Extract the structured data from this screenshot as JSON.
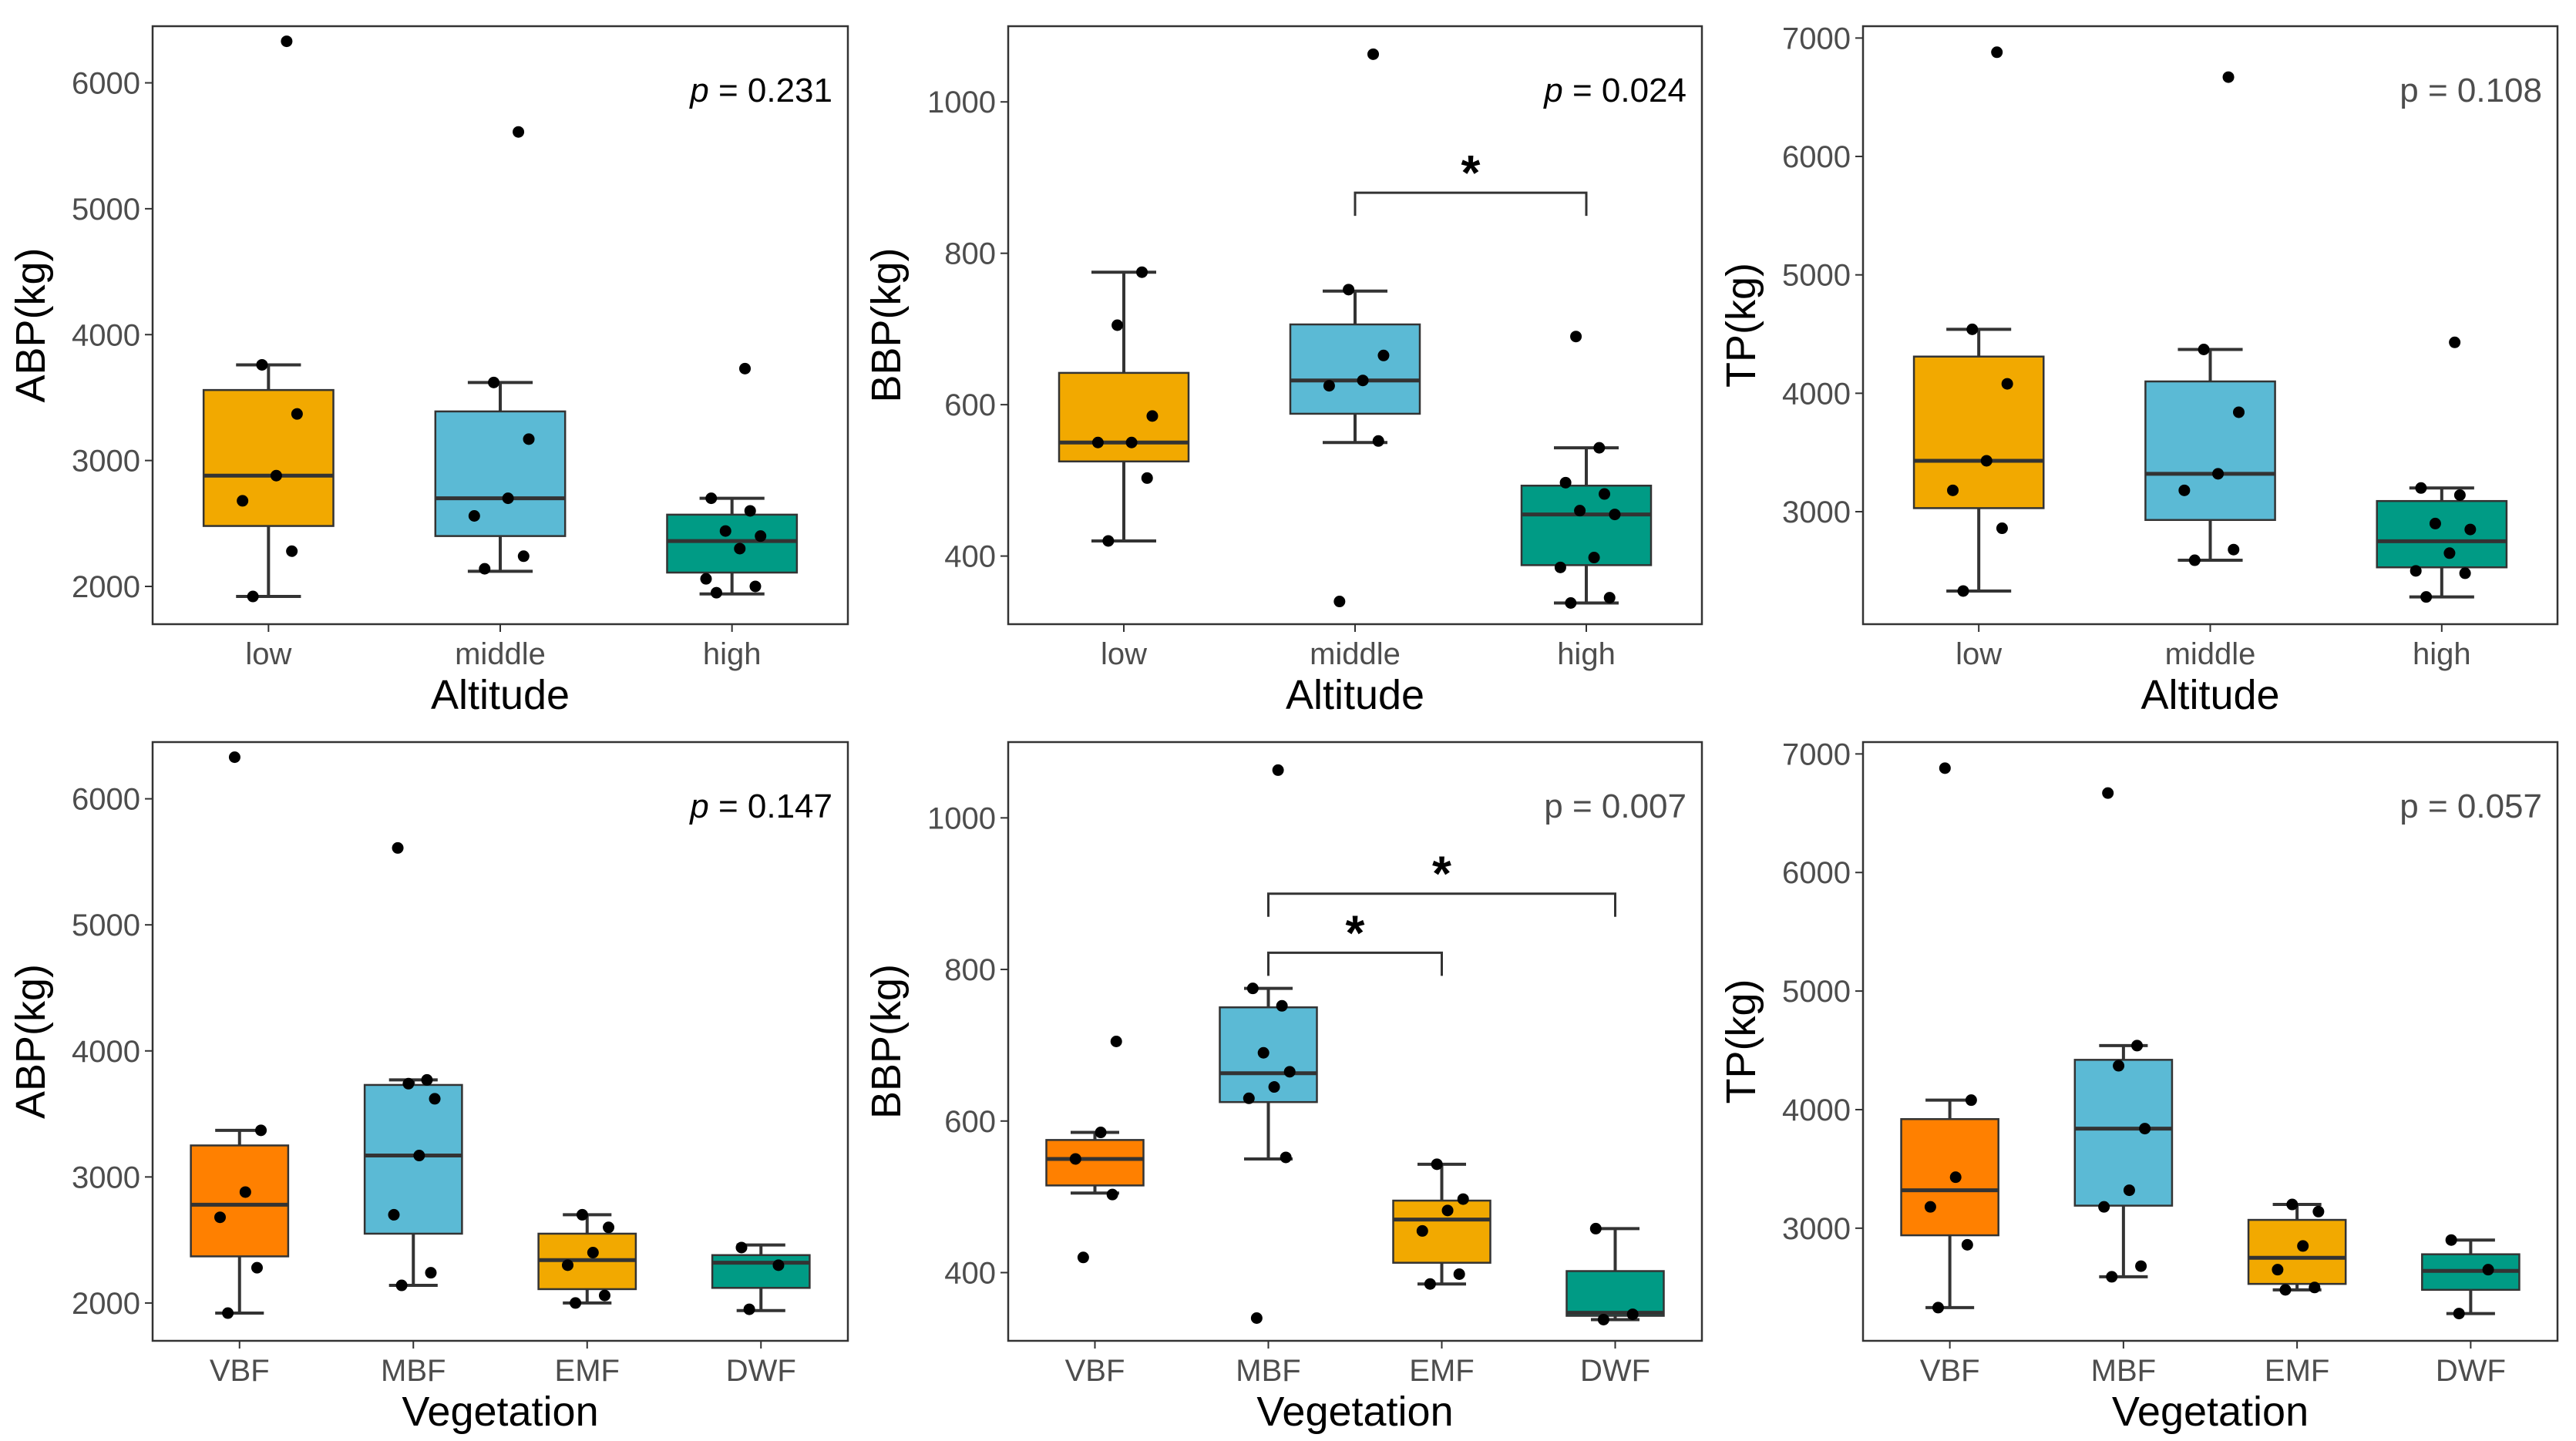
{
  "chart_data": [
    {
      "type": "box",
      "panel": "top-left",
      "xlabel": "Altitude",
      "ylabel": "ABP(kg)",
      "categories": [
        "low",
        "middle",
        "high"
      ],
      "colors": [
        "#F2A900",
        "#5BBAD5",
        "#009B85"
      ],
      "ylim": [
        1700,
        6450
      ],
      "yticks": [
        "2000",
        "3000",
        "4000",
        "5000",
        "6000"
      ],
      "p_text": "p = 0.231",
      "p_italic": true,
      "boxes": [
        {
          "q1": 2480,
          "median": 2880,
          "q3": 3560,
          "lo": 1920,
          "hi": 3760
        },
        {
          "q1": 2400,
          "median": 2700,
          "q3": 3390,
          "lo": 2120,
          "hi": 3620
        },
        {
          "q1": 2110,
          "median": 2360,
          "q3": 2570,
          "lo": 1940,
          "hi": 2700
        }
      ],
      "points": [
        [
          1920,
          2280,
          2680,
          2880,
          3370,
          3760,
          6330
        ],
        [
          2140,
          2240,
          2560,
          2700,
          3170,
          3620,
          5610
        ],
        [
          1950,
          2000,
          2060,
          2300,
          2400,
          2440,
          2600,
          2700,
          3730
        ]
      ],
      "sig": []
    },
    {
      "type": "box",
      "panel": "top-middle",
      "xlabel": "Altitude",
      "ylabel": "BBP(kg)",
      "categories": [
        "low",
        "middle",
        "high"
      ],
      "colors": [
        "#F2A900",
        "#5BBAD5",
        "#009B85"
      ],
      "ylim": [
        310,
        1100
      ],
      "yticks": [
        "400",
        "600",
        "800",
        "1000"
      ],
      "p_text": "p = 0.024",
      "p_italic": true,
      "boxes": [
        {
          "q1": 525,
          "median": 550,
          "q3": 642,
          "lo": 420,
          "hi": 775
        },
        {
          "q1": 588,
          "median": 632,
          "q3": 706,
          "lo": 550,
          "hi": 750
        },
        {
          "q1": 388,
          "median": 455,
          "q3": 493,
          "lo": 338,
          "hi": 543
        }
      ],
      "points": [
        [
          420,
          503,
          550,
          550,
          585,
          705,
          775
        ],
        [
          340,
          552,
          625,
          632,
          665,
          752,
          1063
        ],
        [
          338,
          345,
          385,
          398,
          455,
          460,
          482,
          497,
          543,
          690
        ]
      ],
      "sig": [
        {
          "from": 1,
          "to": 2,
          "y": 880,
          "label": "*"
        }
      ]
    },
    {
      "type": "box",
      "panel": "top-right",
      "xlabel": "Altitude",
      "ylabel": "TP(kg)",
      "categories": [
        "low",
        "middle",
        "high"
      ],
      "colors": [
        "#F2A900",
        "#5BBAD5",
        "#009B85"
      ],
      "ylim": [
        2050,
        7100
      ],
      "yticks": [
        "3000",
        "4000",
        "5000",
        "6000",
        "7000"
      ],
      "p_text": "p = 0.108",
      "p_italic": false,
      "boxes": [
        {
          "q1": 3030,
          "median": 3430,
          "q3": 4310,
          "lo": 2330,
          "hi": 4540
        },
        {
          "q1": 2930,
          "median": 3320,
          "q3": 4100,
          "lo": 2590,
          "hi": 4370
        },
        {
          "q1": 2530,
          "median": 2750,
          "q3": 3090,
          "lo": 2280,
          "hi": 3200
        }
      ],
      "points": [
        [
          2330,
          2860,
          3180,
          3430,
          4080,
          4540,
          6880
        ],
        [
          2590,
          2680,
          3180,
          3320,
          3840,
          4370,
          6670
        ],
        [
          2280,
          2480,
          2500,
          2650,
          2850,
          2900,
          3140,
          3200,
          4430
        ]
      ],
      "sig": []
    },
    {
      "type": "box",
      "panel": "bottom-left",
      "xlabel": "Vegetation",
      "ylabel": "ABP(kg)",
      "categories": [
        "VBF",
        "MBF",
        "EMF",
        "DWF"
      ],
      "colors": [
        "#FF8000",
        "#5BBAD5",
        "#F2A900",
        "#009B85"
      ],
      "ylim": [
        1700,
        6450
      ],
      "yticks": [
        "2000",
        "3000",
        "4000",
        "5000",
        "6000"
      ],
      "p_text": "p = 0.147",
      "p_italic": true,
      "boxes": [
        {
          "q1": 2370,
          "median": 2780,
          "q3": 3250,
          "lo": 1920,
          "hi": 3370
        },
        {
          "q1": 2550,
          "median": 3170,
          "q3": 3730,
          "lo": 2140,
          "hi": 3770
        },
        {
          "q1": 2110,
          "median": 2340,
          "q3": 2550,
          "lo": 2000,
          "hi": 2700
        },
        {
          "q1": 2120,
          "median": 2320,
          "q3": 2380,
          "lo": 1940,
          "hi": 2460
        }
      ],
      "points": [
        [
          1920,
          2280,
          2680,
          2880,
          3370,
          6330
        ],
        [
          2140,
          2240,
          2700,
          3170,
          3620,
          3740,
          3770,
          5610
        ],
        [
          2000,
          2060,
          2300,
          2400,
          2600,
          2700
        ],
        [
          1950,
          2300,
          2440
        ]
      ],
      "sig": []
    },
    {
      "type": "box",
      "panel": "bottom-middle",
      "xlabel": "Vegetation",
      "ylabel": "BBP(kg)",
      "categories": [
        "VBF",
        "MBF",
        "EMF",
        "DWF"
      ],
      "colors": [
        "#FF8000",
        "#5BBAD5",
        "#F2A900",
        "#009B85"
      ],
      "ylim": [
        310,
        1100
      ],
      "yticks": [
        "400",
        "600",
        "800",
        "1000"
      ],
      "p_text": "p = 0.007",
      "p_italic": false,
      "boxes": [
        {
          "q1": 515,
          "median": 550,
          "q3": 575,
          "lo": 505,
          "hi": 585
        },
        {
          "q1": 625,
          "median": 663,
          "q3": 750,
          "lo": 550,
          "hi": 775
        },
        {
          "q1": 413,
          "median": 470,
          "q3": 495,
          "lo": 385,
          "hi": 543
        },
        {
          "q1": 343,
          "median": 347,
          "q3": 402,
          "lo": 338,
          "hi": 458
        }
      ],
      "points": [
        [
          420,
          503,
          550,
          585,
          705
        ],
        [
          340,
          552,
          630,
          645,
          665,
          690,
          752,
          775,
          1063
        ],
        [
          385,
          398,
          455,
          482,
          497,
          543
        ],
        [
          338,
          345,
          458
        ]
      ],
      "sig": [
        {
          "from": 1,
          "to": 3,
          "y": 900,
          "label": "*"
        },
        {
          "from": 1,
          "to": 2,
          "y": 822,
          "label": "*"
        }
      ]
    },
    {
      "type": "box",
      "panel": "bottom-right",
      "xlabel": "Vegetation",
      "ylabel": "TP(kg)",
      "categories": [
        "VBF",
        "MBF",
        "EMF",
        "DWF"
      ],
      "colors": [
        "#FF8000",
        "#5BBAD5",
        "#F2A900",
        "#009B85"
      ],
      "ylim": [
        2050,
        7100
      ],
      "yticks": [
        "3000",
        "4000",
        "5000",
        "6000",
        "7000"
      ],
      "p_text": "p = 0.057",
      "p_italic": false,
      "boxes": [
        {
          "q1": 2940,
          "median": 3320,
          "q3": 3920,
          "lo": 2330,
          "hi": 4080
        },
        {
          "q1": 3190,
          "median": 3840,
          "q3": 4420,
          "lo": 2590,
          "hi": 4540
        },
        {
          "q1": 2530,
          "median": 2750,
          "q3": 3070,
          "lo": 2480,
          "hi": 3200
        },
        {
          "q1": 2480,
          "median": 2640,
          "q3": 2780,
          "lo": 2280,
          "hi": 2900
        }
      ],
      "points": [
        [
          2330,
          2860,
          3180,
          3430,
          4080,
          6880
        ],
        [
          2590,
          2680,
          3180,
          3320,
          3840,
          4370,
          4540,
          6670
        ],
        [
          2480,
          2500,
          2650,
          2850,
          3140,
          3200
        ],
        [
          2280,
          2650,
          2900
        ]
      ],
      "sig": []
    }
  ]
}
